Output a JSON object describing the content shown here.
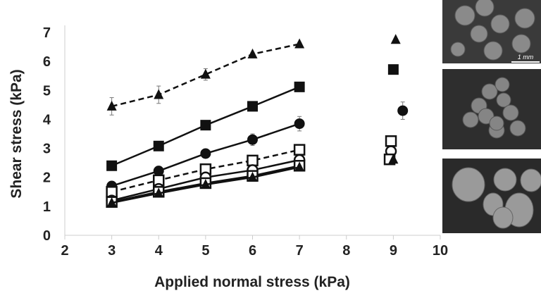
{
  "chart_data": {
    "type": "scatter",
    "title": "",
    "xlabel": "Applied normal stress (kPa)",
    "ylabel": "Shear stress (kPa)",
    "xlim": [
      2,
      10
    ],
    "ylim": [
      0,
      7
    ],
    "xticks": [
      "2",
      "3",
      "4",
      "5",
      "6",
      "7",
      "8",
      "9",
      "10"
    ],
    "yticks": [
      "0",
      "1",
      "2",
      "3",
      "4",
      "5",
      "6",
      "7"
    ],
    "grid": false,
    "series": [
      {
        "name": "filled triangle dashed",
        "marker": "triangle-filled",
        "line": "dashed",
        "x": [
          3,
          4,
          5,
          6,
          7
        ],
        "y": [
          4.45,
          4.85,
          5.55,
          6.25,
          6.6
        ],
        "err": [
          0.3,
          0.3,
          0.2,
          0.05,
          0.05
        ],
        "extra_point": {
          "x": 9.05,
          "y": 6.75
        }
      },
      {
        "name": "filled square solid",
        "marker": "square-filled",
        "line": "solid",
        "x": [
          3,
          4,
          5,
          6,
          7
        ],
        "y": [
          2.4,
          3.08,
          3.8,
          4.45,
          5.12
        ],
        "err": [
          0,
          0,
          0,
          0,
          0
        ],
        "extra_point": {
          "x": 9.0,
          "y": 5.72
        }
      },
      {
        "name": "filled circle solid",
        "marker": "circle-filled",
        "line": "solid",
        "x": [
          3,
          4,
          5,
          6,
          7
        ],
        "y": [
          1.7,
          2.22,
          2.82,
          3.3,
          3.85
        ],
        "err": [
          0,
          0,
          0,
          0.2,
          0.25
        ],
        "extra_point": {
          "x": 9.2,
          "y": 4.3,
          "err": 0.3
        }
      },
      {
        "name": "open square dashed",
        "marker": "square-open",
        "line": "dashed",
        "x": [
          3,
          4,
          5,
          6,
          7
        ],
        "y": [
          1.5,
          1.9,
          2.28,
          2.58,
          2.95
        ],
        "err": [
          0,
          0,
          0,
          0,
          0
        ],
        "extra_point": {
          "x": 8.95,
          "y": 3.25
        }
      },
      {
        "name": "open circle solid",
        "marker": "circle-open",
        "line": "solid",
        "x": [
          3,
          4,
          5,
          6,
          7
        ],
        "y": [
          1.2,
          1.6,
          2.0,
          2.25,
          2.6
        ],
        "err": [
          0,
          0,
          0,
          0,
          0
        ],
        "extra_point": {
          "x": 8.95,
          "y": 2.9
        }
      },
      {
        "name": "open square solid",
        "marker": "square-open",
        "line": "solid",
        "x": [
          3,
          4,
          5,
          6,
          7
        ],
        "y": [
          1.15,
          1.5,
          1.8,
          2.05,
          2.4
        ],
        "err": [
          0,
          0,
          0,
          0,
          0
        ],
        "extra_point": {
          "x": 8.92,
          "y": 2.62
        }
      },
      {
        "name": "triangle solid",
        "marker": "triangle-filled",
        "line": "solid",
        "x": [
          3,
          4,
          5,
          6,
          7
        ],
        "y": [
          1.12,
          1.45,
          1.75,
          2.0,
          2.35
        ],
        "err": [
          0,
          0,
          0,
          0,
          0
        ],
        "extra_point": {
          "x": 9.0,
          "y": 2.62
        }
      }
    ]
  },
  "images": {
    "scale_bar": "1 mm"
  }
}
